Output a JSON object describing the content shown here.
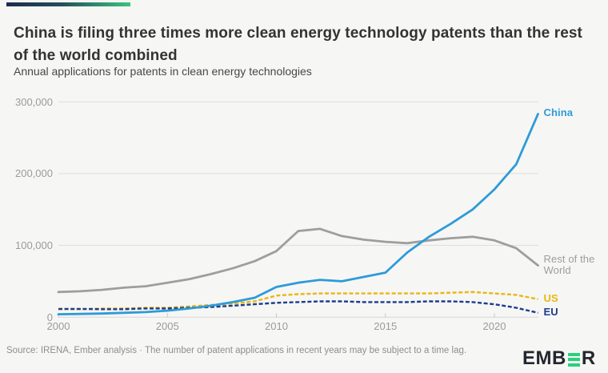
{
  "header": {
    "title": "China is filing three times more clean energy technology patents than the rest of the world combined",
    "subtitle": "Annual applications for patents in clean energy technologies"
  },
  "footer": {
    "source_text": "Source: IRENA, Ember analysis · The number of patent applications in recent years may be subject to a time lag.",
    "logo": {
      "prefix": "EMB",
      "suffix": "R",
      "green_e_icon": "three-bar-E",
      "dark_color": "#23272e",
      "green_color": "#2ccf7c"
    }
  },
  "colors": {
    "china_blue": "#2d9bd8",
    "rest_of_world_gray": "#9e9e9e",
    "us_yellow": "#e9b711",
    "eu_navy": "#1d3c8c",
    "gridline": "#dedede",
    "baseline": "#d6d6d6",
    "tick_mark": "#c9c9c9",
    "accent_gradient": [
      "#1e2a4f",
      "#22505c",
      "#3cc47c"
    ]
  },
  "chart_data": {
    "type": "line",
    "title": "China is filing three times more clean energy technology patents than the rest of the world combined",
    "subtitle": "Annual applications for patents in clean energy technologies",
    "xlabel": "",
    "ylabel": "",
    "xlim": [
      2000,
      2022
    ],
    "ylim": [
      0,
      300000
    ],
    "grid": "horizontal",
    "legend_position": "line-end-labels",
    "x": [
      2000,
      2001,
      2002,
      2003,
      2004,
      2005,
      2006,
      2007,
      2008,
      2009,
      2010,
      2011,
      2012,
      2013,
      2014,
      2015,
      2016,
      2017,
      2018,
      2019,
      2020,
      2021,
      2022
    ],
    "series": [
      {
        "name": "Rest of the World",
        "color": "#9e9e9e",
        "style": "solid",
        "values": [
          35000,
          36000,
          38000,
          41000,
          43000,
          48000,
          53000,
          60000,
          68000,
          78000,
          92000,
          120000,
          123000,
          113000,
          108000,
          105000,
          103000,
          107000,
          110000,
          112000,
          107000,
          96000,
          72000
        ]
      },
      {
        "name": "US",
        "color": "#e9b711",
        "style": "dashed",
        "values": [
          11000,
          11000,
          12000,
          12000,
          13000,
          13000,
          15000,
          17000,
          19000,
          22000,
          30000,
          32000,
          33000,
          33000,
          33000,
          33000,
          33000,
          33000,
          34000,
          35000,
          33000,
          31000,
          25000
        ]
      },
      {
        "name": "EU",
        "color": "#1d3c8c",
        "style": "dashed",
        "values": [
          11500,
          11500,
          11000,
          11000,
          12000,
          12000,
          13000,
          14000,
          16000,
          18000,
          20000,
          21000,
          22000,
          22000,
          21000,
          21000,
          21000,
          22000,
          22000,
          21000,
          18000,
          13000,
          6000
        ]
      },
      {
        "name": "China",
        "color": "#2d9bd8",
        "style": "solid",
        "values": [
          4000,
          4500,
          5000,
          6000,
          7000,
          9000,
          12000,
          16000,
          21000,
          27000,
          42000,
          48000,
          52000,
          50000,
          56000,
          62000,
          90000,
          112000,
          130000,
          150000,
          178000,
          213000,
          283000
        ]
      }
    ],
    "y_ticks": [
      {
        "value": 300000,
        "label": "300,000"
      },
      {
        "value": 200000,
        "label": "200,000"
      },
      {
        "value": 100000,
        "label": "100,000"
      },
      {
        "value": 0,
        "label": "0"
      }
    ],
    "x_ticks": [
      {
        "value": 2000,
        "label": "2000"
      },
      {
        "value": 2005,
        "label": "2005"
      },
      {
        "value": 2010,
        "label": "2010"
      },
      {
        "value": 2015,
        "label": "2015"
      },
      {
        "value": 2020,
        "label": "2020"
      }
    ]
  }
}
